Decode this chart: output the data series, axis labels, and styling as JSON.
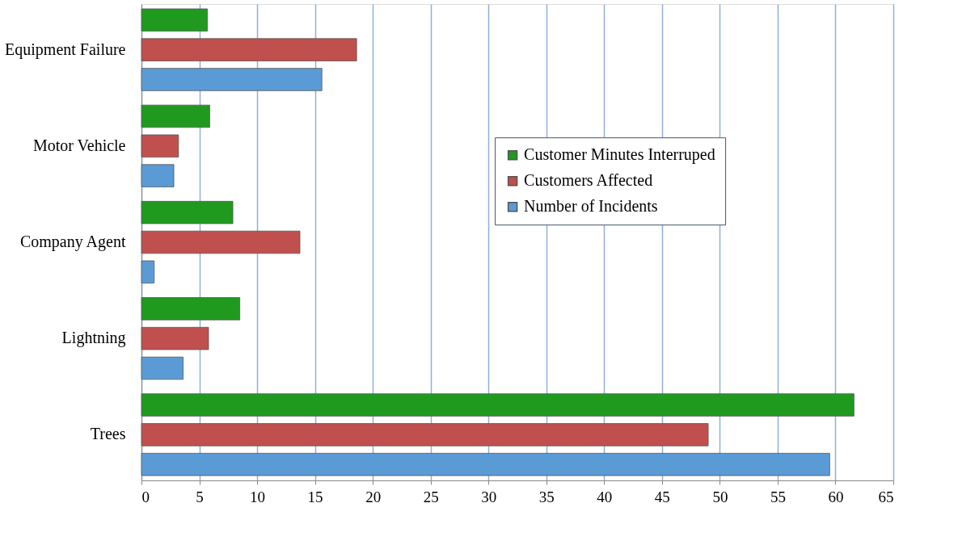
{
  "chart_data": {
    "type": "bar",
    "orientation": "horizontal",
    "categories": [
      "Equipment Failure",
      "Motor Vehicle",
      "Company Agent",
      "Lightning",
      "Trees"
    ],
    "series": [
      {
        "name": "Customer Minutes Interruped",
        "color": "#1f9a1f",
        "values": [
          5.7,
          5.9,
          7.9,
          8.5,
          61.6
        ]
      },
      {
        "name": "Customers Affected",
        "color": "#c0504d",
        "values": [
          18.6,
          3.2,
          13.7,
          5.8,
          49.0
        ]
      },
      {
        "name": "Number of Incidents",
        "color": "#5b9bd5",
        "values": [
          15.6,
          2.8,
          1.1,
          3.6,
          59.5
        ]
      }
    ],
    "xlim": [
      0,
      65
    ],
    "xticks": [
      0,
      5,
      10,
      15,
      20,
      25,
      30,
      35,
      40,
      45,
      50,
      55,
      60,
      65
    ],
    "grid": "x",
    "legend": "right"
  }
}
